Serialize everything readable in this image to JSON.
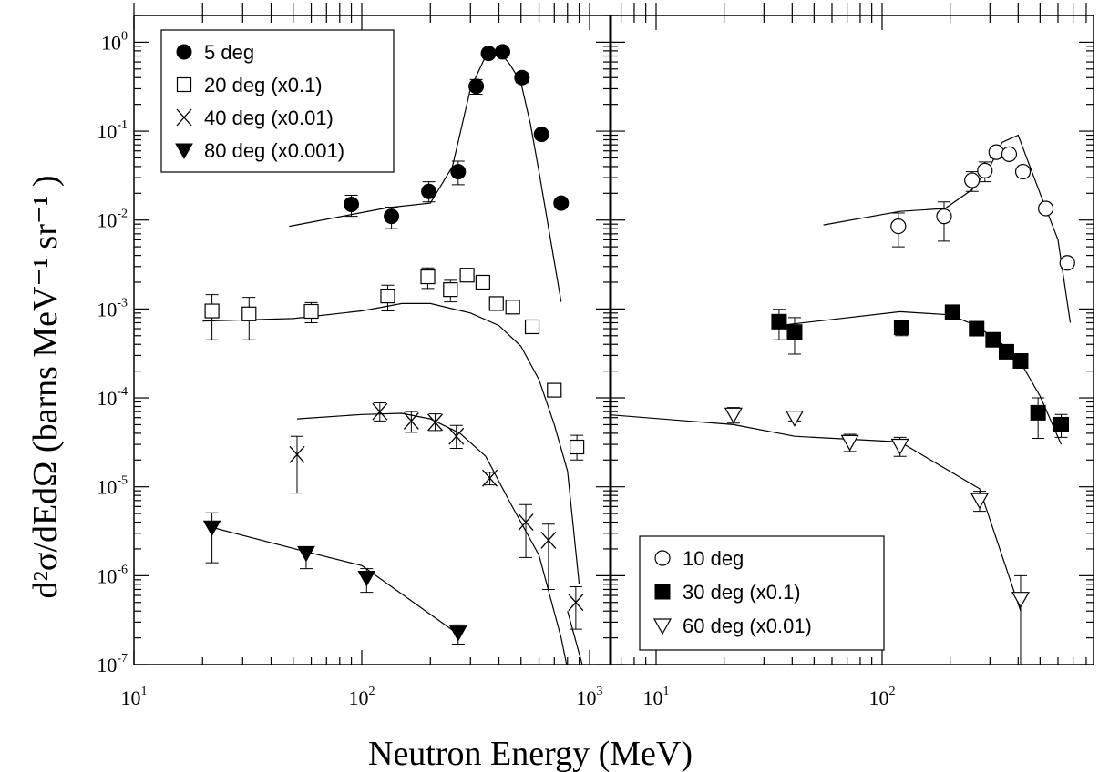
{
  "chart_data": {
    "type": "scatter",
    "ylabel": "d²σ/dEdΩ (barns MeV⁻¹ sr⁻¹ )",
    "xlabel": "Neutron Energy (MeV)",
    "yscale": "log",
    "xscale": "log",
    "ylim": [
      1e-07,
      2
    ],
    "y_ticks": [
      {
        "base": "10",
        "exp": "0",
        "value": 1
      },
      {
        "base": "10",
        "exp": "-1",
        "value": 0.1
      },
      {
        "base": "10",
        "exp": "-2",
        "value": 0.01
      },
      {
        "base": "10",
        "exp": "-3",
        "value": 0.001
      },
      {
        "base": "10",
        "exp": "-4",
        "value": 0.0001
      },
      {
        "base": "10",
        "exp": "-5",
        "value": 1e-05
      },
      {
        "base": "10",
        "exp": "-6",
        "value": 1e-06
      },
      {
        "base": "10",
        "exp": "-7",
        "value": 1e-07
      }
    ],
    "panels": [
      {
        "xlim": [
          10,
          1500
        ],
        "x_ticks": [
          {
            "base": "10",
            "exp": "1",
            "value": 10
          },
          {
            "base": "10",
            "exp": "2",
            "value": 100
          },
          {
            "base": "10",
            "exp": "3",
            "value": 1000
          }
        ],
        "legend_position": "top-left",
        "series": [
          {
            "name": "5 deg",
            "marker": "filled-circle",
            "x": [
              90,
              135,
              197,
              265,
              318,
              360,
              415,
              505,
              615,
              750
            ],
            "y": [
              0.015,
              0.011,
              0.021,
              0.035,
              0.32,
              0.75,
              0.78,
              0.4,
              0.092,
              0.0155
            ],
            "err_lo": [
              0.011,
              0.008,
              0.016,
              0.025,
              0.26,
              0.68,
              0.7,
              0.35,
              0.085,
              0.0145
            ],
            "err_hi": [
              0.019,
              0.014,
              0.027,
              0.046,
              0.38,
              0.82,
              0.86,
              0.45,
              0.1,
              0.0165
            ],
            "curve_x": [
              48,
              130,
              200,
              250,
              300,
              350,
              400,
              450,
              500,
              550,
              600,
              750
            ],
            "curve_y": [
              0.0085,
              0.0138,
              0.0155,
              0.04,
              0.3,
              0.7,
              0.8,
              0.55,
              0.35,
              0.12,
              0.035,
              0.0012
            ]
          },
          {
            "name": "20 deg (x0.1)",
            "marker": "open-square",
            "x": [
              22,
              32,
              60,
              130,
              195,
              245,
              290,
              340,
              390,
              460,
              560,
              700,
              880
            ],
            "y": [
              0.00095,
              0.00088,
              0.00094,
              0.0014,
              0.0023,
              0.00165,
              0.0024,
              0.002,
              0.00115,
              0.00105,
              0.00063,
              0.000122,
              2.8e-05
            ],
            "err_lo": [
              0.00045,
              0.00045,
              0.0007,
              0.00095,
              0.0017,
              0.0012,
              null,
              null,
              null,
              null,
              null,
              0.000105,
              2e-05
            ],
            "err_hi": [
              0.00145,
              0.00135,
              0.00118,
              0.00185,
              0.0029,
              0.0021,
              null,
              null,
              null,
              null,
              null,
              0.00014,
              3.8e-05
            ],
            "curve_x": [
              20,
              50,
              100,
              150,
              200,
              300,
              400,
              500,
              600,
              700,
              800,
              900
            ],
            "curve_y": [
              0.00073,
              0.00078,
              0.00095,
              0.00115,
              0.00115,
              0.0009,
              0.00065,
              0.00038,
              0.00016,
              5e-05,
              1.5e-05,
              8e-07
            ]
          },
          {
            "name": "40 deg (x0.01)",
            "marker": "cross",
            "x": [
              52,
              120,
              165,
              210,
              260,
              365,
              525,
              660,
              870
            ],
            "y": [
              2.3e-05,
              7e-05,
              5.5e-05,
              5.3e-05,
              3.7e-05,
              1.25e-05,
              4e-06,
              2.5e-06,
              5e-07
            ],
            "err_lo": [
              8.5e-06,
              5.5e-05,
              4.1e-05,
              4.3e-05,
              2.7e-05,
              1.05e-05,
              1.6e-06,
              7e-07,
              2.5e-07
            ],
            "err_hi": [
              3.7e-05,
              8.8e-05,
              7e-05,
              6.6e-05,
              4.9e-05,
              1.45e-05,
              6.3e-06,
              3.8e-06,
              7.5e-07
            ],
            "curve_x": [
              52,
              100,
              150,
              200,
              270,
              350,
              450,
              600,
              750,
              900
            ],
            "curve_y": [
              5.8e-05,
              6.5e-05,
              6.7e-05,
              5.8e-05,
              4e-05,
              2.2e-05,
              6.5e-06,
              1.7e-06,
              2e-07,
              2e-08
            ]
          },
          {
            "name": "80 deg (x0.001)",
            "marker": "filled-triangle-down",
            "x": [
              22,
              57,
              105,
              265
            ],
            "y": [
              3.5e-06,
              1.8e-06,
              9.5e-07,
              2.3e-07
            ],
            "err_lo": [
              1.4e-06,
              1.2e-06,
              6.5e-07,
              1.7e-07
            ],
            "err_hi": [
              5.1e-06,
              2.1e-06,
              1.2e-06,
              2.8e-07
            ],
            "curve_x": [
              21,
              55,
              100,
              265
            ],
            "curve_y": [
              3.6e-06,
              1.9e-06,
              1.3e-06,
              2.2e-07
            ]
          }
        ],
        "extra_curves": [
          {
            "x": [
              800,
              1000
            ],
            "y": [
              4e-07,
              5e-08
            ]
          }
        ]
      },
      {
        "xlim": [
          5,
          900
        ],
        "x_ticks": [
          {
            "base": "10",
            "exp": "1",
            "value": 10
          },
          {
            "base": "10",
            "exp": "2",
            "value": 100
          }
        ],
        "legend_position": "bottom-right",
        "series": [
          {
            "name": "10 deg",
            "marker": "open-circle",
            "x": [
              118,
              188,
              250,
              285,
              320,
              365,
              420,
              530,
              660
            ],
            "y": [
              0.0085,
              0.011,
              0.028,
              0.036,
              0.058,
              0.055,
              0.035,
              0.0135,
              0.0033
            ],
            "err_lo": [
              0.005,
              0.0058,
              0.021,
              0.027,
              0.05,
              0.05,
              0.031,
              0.0125,
              0.0029
            ],
            "err_hi": [
              0.012,
              0.016,
              0.035,
              0.045,
              0.066,
              0.06,
              0.039,
              0.0145,
              0.0037
            ],
            "curve_x": [
              55,
              120,
              190,
              250,
              300,
              340,
              380,
              400,
              500,
              600,
              680
            ],
            "curve_y": [
              0.0088,
              0.0125,
              0.0135,
              0.022,
              0.04,
              0.075,
              0.085,
              0.09,
              0.02,
              0.006,
              0.0007
            ]
          },
          {
            "name": "30 deg (x0.1)",
            "marker": "filled-square",
            "x": [
              35,
              41,
              122,
              205,
              262,
              310,
              355,
              410,
              490,
              620
            ],
            "y": [
              0.00072,
              0.00055,
              0.00062,
              0.00092,
              0.0006,
              0.00045,
              0.00033,
              0.00026,
              6.8e-05,
              5e-05
            ],
            "err_lo": [
              0.00045,
              0.00031,
              0.0005,
              0.00078,
              0.0005,
              0.00039,
              0.00029,
              0.00023,
              3.5e-05,
              3.6e-05
            ],
            "err_hi": [
              0.00099,
              0.0008,
              0.00075,
              0.00106,
              0.0007,
              0.00051,
              0.00037,
              0.00029,
              0.0001,
              6.5e-05
            ],
            "curve_x": [
              35,
              120,
              200,
              260,
              310,
              360,
              410,
              500,
              620
            ],
            "curve_y": [
              0.00065,
              0.00093,
              0.00086,
              0.00065,
              0.00048,
              0.00036,
              0.00025,
              0.000105,
              3e-05
            ]
          },
          {
            "name": "60 deg (x0.01)",
            "marker": "open-triangle-down",
            "x": [
              22,
              41,
              72,
              120,
              270,
              410
            ],
            "y": [
              6.5e-05,
              6e-05,
              3.2e-05,
              2.9e-05,
              7.1e-06,
              5.5e-07
            ],
            "err_lo": [
              5.2e-05,
              5.5e-05,
              2.5e-05,
              2.2e-05,
              5.3e-06,
              1e-07
            ],
            "err_hi": [
              7.8e-05,
              6.5e-05,
              3.9e-05,
              3.6e-05,
              8.9e-06,
              1e-06
            ],
            "curve_x": [
              6,
              22,
              41,
              120,
              270,
              410
            ],
            "curve_y": [
              6.5e-05,
              5e-05,
              3.7e-05,
              3.2e-05,
              9.5e-06,
              4e-07
            ]
          }
        ],
        "extra_curves": []
      }
    ]
  }
}
